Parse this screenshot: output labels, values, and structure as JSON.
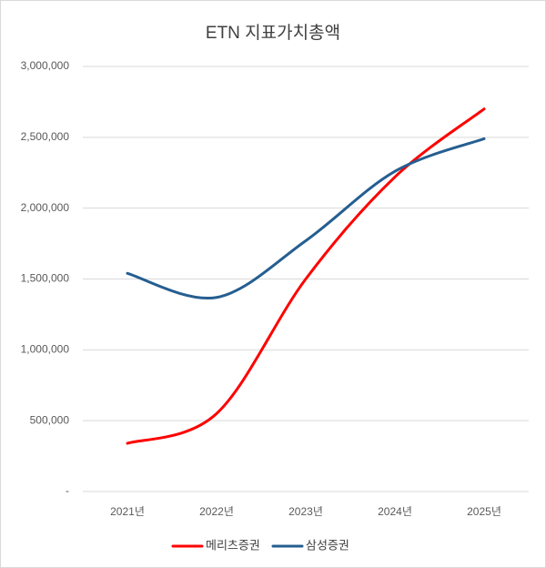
{
  "chart_data": {
    "type": "line",
    "title": "ETN 지표가치총액",
    "categories": [
      "2021년",
      "2022년",
      "2023년",
      "2024년",
      "2025년"
    ],
    "series": [
      {
        "name": "메리츠증권",
        "color": "#ff0000",
        "values": [
          340000,
          550000,
          1500000,
          2220000,
          2700000
        ]
      },
      {
        "name": "삼성증권",
        "color": "#255e91",
        "values": [
          1540000,
          1370000,
          1770000,
          2260000,
          2490000
        ]
      }
    ],
    "ylim": [
      0,
      3000000
    ],
    "yticks": [
      {
        "value": 0,
        "label": "-"
      },
      {
        "value": 500000,
        "label": "500,000"
      },
      {
        "value": 1000000,
        "label": "1,000,000"
      },
      {
        "value": 1500000,
        "label": "1,500,000"
      },
      {
        "value": 2000000,
        "label": "2,000,000"
      },
      {
        "value": 2500000,
        "label": "2,500,000"
      },
      {
        "value": 3000000,
        "label": "3,000,000"
      }
    ],
    "grid": true,
    "smooth": true,
    "legend": "bottom"
  }
}
